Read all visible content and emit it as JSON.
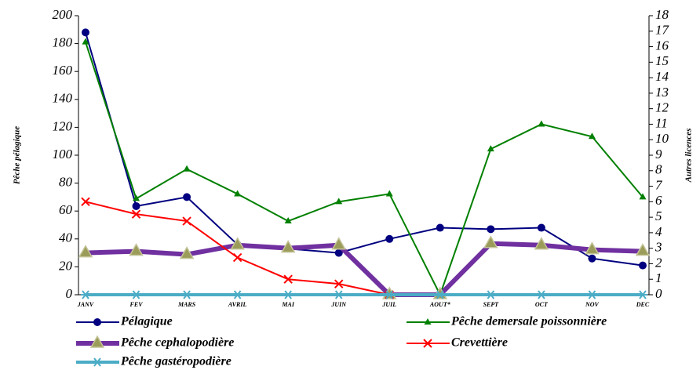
{
  "chart_data": {
    "type": "line",
    "categories": [
      "JANV",
      "FEV",
      "MARS",
      "AVRIL",
      "MAI",
      "JUIN",
      "JUIL",
      "AOUT*",
      "SEPT",
      "OCT",
      "NOV",
      "DEC"
    ],
    "ylabel": "Pêche pélagique",
    "y2label": "Autres licences",
    "ylim": [
      0,
      200
    ],
    "yticks": [
      0,
      20,
      40,
      60,
      80,
      100,
      120,
      140,
      160,
      180,
      200
    ],
    "y2lim": [
      0,
      18
    ],
    "y2ticks": [
      0,
      1,
      2,
      3,
      4,
      5,
      6,
      7,
      8,
      9,
      10,
      11,
      12,
      13,
      14,
      15,
      16,
      17,
      18
    ],
    "series": [
      {
        "name": "Pélagique",
        "color": "#000080",
        "marker": "circle",
        "values": [
          188,
          63.5,
          70,
          36,
          33,
          30,
          40,
          48,
          47,
          48,
          26,
          21
        ]
      },
      {
        "name": "Pêche demersale poissonnière",
        "color": "#008000",
        "marker": "triangle",
        "axis": "y2",
        "values": [
          16.3,
          6.2,
          8.1,
          6.5,
          4.75,
          6,
          6.5,
          0,
          9.4,
          11,
          10.2,
          6.3
        ]
      },
      {
        "name": "Pêche cephalopodière",
        "color": "#7030a0",
        "marker": "big-triangle",
        "axis": "y2",
        "values": [
          2.7,
          2.8,
          2.6,
          3.2,
          3,
          3.2,
          0,
          0,
          3.3,
          3.2,
          2.9,
          2.8
        ]
      },
      {
        "name": "Crevettière",
        "color": "#ff0000",
        "marker": "x",
        "axis": "y2",
        "values": [
          6,
          5.2,
          4.75,
          2.4,
          1,
          0.7,
          0,
          null,
          null,
          null,
          null,
          null
        ]
      },
      {
        "name": "Pêche gastéropodière",
        "color": "#4bacc6",
        "marker": "star",
        "axis": "y2",
        "values": [
          0,
          0,
          0,
          0,
          0,
          0,
          0,
          0,
          0,
          0,
          0,
          0
        ]
      }
    ]
  }
}
